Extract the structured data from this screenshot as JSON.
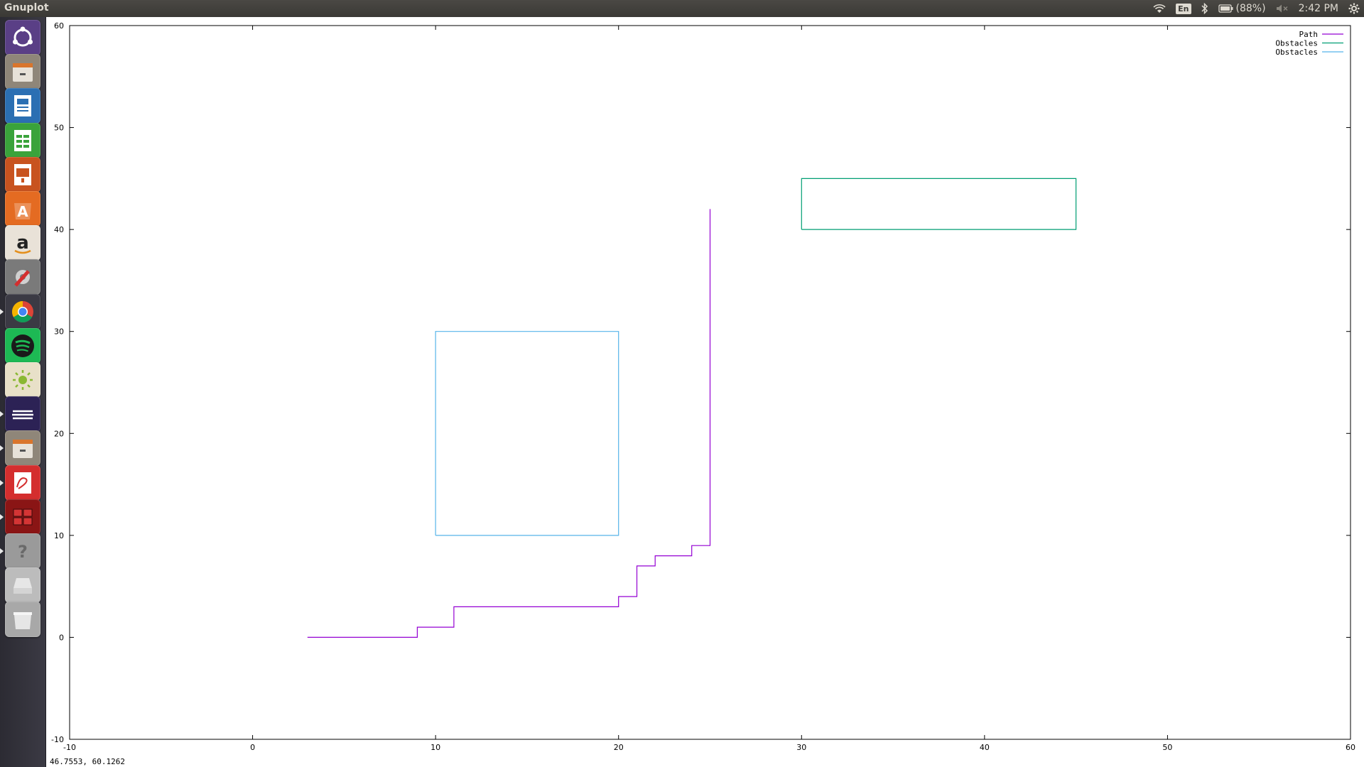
{
  "window": {
    "title": "Gnuplot"
  },
  "topbar": {
    "keyboard_layout": "En",
    "battery": "(88%)",
    "clock": "2:42 PM",
    "icons": [
      "wifi-icon",
      "keyboard-layout-icon",
      "bluetooth-icon",
      "battery-icon",
      "volume-muted-icon",
      "settings-gear-icon"
    ]
  },
  "launcher": {
    "items": [
      {
        "name": "ubuntu-dash",
        "color": "#5a3f86"
      },
      {
        "name": "files",
        "color": "#8f8679"
      },
      {
        "name": "libreoffice-writer",
        "color": "#2b6fb3"
      },
      {
        "name": "libreoffice-calc",
        "color": "#3aa33b"
      },
      {
        "name": "libreoffice-impress",
        "color": "#c8531f"
      },
      {
        "name": "ubuntu-software",
        "color": "#e46b22"
      },
      {
        "name": "amazon",
        "color": "#e9e2d8"
      },
      {
        "name": "system-settings",
        "color": "#7a7a7a"
      },
      {
        "name": "chrome",
        "color": "#3b3a44"
      },
      {
        "name": "spotify",
        "color": "#1db954"
      },
      {
        "name": "brightness",
        "color": "#e8e0c8"
      },
      {
        "name": "eclipse",
        "color": "#2c2255"
      },
      {
        "name": "files-2",
        "color": "#8f8679"
      },
      {
        "name": "pdf-viewer",
        "color": "#d42e2e"
      },
      {
        "name": "workspaces",
        "color": "#8a1515"
      },
      {
        "name": "help",
        "color": "#9a9a9a"
      },
      {
        "name": "drive",
        "color": "#bcbcbc"
      },
      {
        "name": "trash",
        "color": "#a8a8a8"
      }
    ]
  },
  "status_bar": {
    "coordinates": "46.7553,  60.1262"
  },
  "chart_data": {
    "type": "line",
    "title": "",
    "xlabel": "",
    "ylabel": "",
    "xlim": [
      -10,
      60
    ],
    "ylim": [
      -10,
      60
    ],
    "xticks": [
      -10,
      0,
      10,
      20,
      30,
      40,
      50,
      60
    ],
    "yticks": [
      -10,
      0,
      10,
      20,
      30,
      40,
      50,
      60
    ],
    "grid": false,
    "legend_position": "top-right",
    "series": [
      {
        "name": "Path",
        "color": "#9400d3",
        "points": [
          [
            3,
            0
          ],
          [
            9,
            0
          ],
          [
            9,
            1
          ],
          [
            11,
            1
          ],
          [
            11,
            3
          ],
          [
            20,
            3
          ],
          [
            20,
            4
          ],
          [
            21,
            4
          ],
          [
            21,
            7
          ],
          [
            22,
            7
          ],
          [
            22,
            8
          ],
          [
            24,
            8
          ],
          [
            24,
            9
          ],
          [
            25,
            9
          ],
          [
            25,
            42
          ]
        ]
      },
      {
        "name": "Obstacles",
        "color": "#009e73",
        "points": [
          [
            30,
            40
          ],
          [
            45,
            40
          ],
          [
            45,
            45
          ],
          [
            30,
            45
          ],
          [
            30,
            40
          ]
        ]
      },
      {
        "name": "Obstacles",
        "color": "#56b4e9",
        "points": [
          [
            10,
            10
          ],
          [
            20,
            10
          ],
          [
            20,
            30
          ],
          [
            10,
            30
          ],
          [
            10,
            10
          ]
        ]
      }
    ]
  }
}
